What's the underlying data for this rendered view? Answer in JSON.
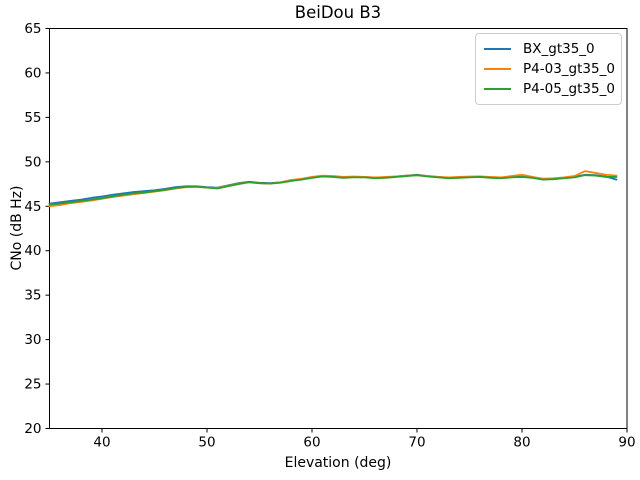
{
  "figure": {
    "background": "#ffffff",
    "spine_color": "#000000",
    "legend_border_color": "#cccccc"
  },
  "chart_data": {
    "type": "line",
    "title": "BeiDou B3",
    "xlabel": "Elevation (deg)",
    "ylabel": "CNo (dB Hz)",
    "xlim": [
      35,
      90
    ],
    "ylim": [
      20,
      65
    ],
    "xticks": [
      40,
      50,
      60,
      70,
      80,
      90
    ],
    "yticks": [
      20,
      25,
      30,
      35,
      40,
      45,
      50,
      55,
      60,
      65
    ],
    "grid": false,
    "legend_position": "upper right",
    "x": [
      35,
      36,
      37,
      38,
      39,
      40,
      41,
      42,
      43,
      44,
      45,
      46,
      47,
      48,
      49,
      50,
      51,
      52,
      53,
      54,
      55,
      56,
      57,
      58,
      59,
      60,
      61,
      62,
      63,
      64,
      65,
      66,
      67,
      68,
      69,
      70,
      71,
      72,
      73,
      74,
      75,
      76,
      77,
      78,
      79,
      80,
      81,
      82,
      83,
      84,
      85,
      86,
      87,
      88,
      89
    ],
    "series": [
      {
        "name": "BX_gt35_0",
        "color": "#1f77b4",
        "values": [
          45.3,
          45.45,
          45.6,
          45.75,
          45.95,
          46.1,
          46.3,
          46.45,
          46.6,
          46.7,
          46.8,
          46.95,
          47.15,
          47.25,
          47.25,
          47.15,
          47.1,
          47.35,
          47.6,
          47.75,
          47.65,
          47.6,
          47.7,
          47.9,
          48.05,
          48.25,
          48.4,
          48.35,
          48.25,
          48.3,
          48.3,
          48.2,
          48.25,
          48.35,
          48.45,
          48.55,
          48.4,
          48.3,
          48.2,
          48.25,
          48.3,
          48.35,
          48.25,
          48.2,
          48.3,
          48.35,
          48.25,
          48.1,
          48.1,
          48.2,
          48.3,
          48.55,
          48.5,
          48.35,
          48.0
        ]
      },
      {
        "name": "P4-03_gt35_0",
        "color": "#ff7f0e",
        "values": [
          45.0,
          45.15,
          45.35,
          45.5,
          45.65,
          45.85,
          46.05,
          46.2,
          46.35,
          46.5,
          46.65,
          46.8,
          47.0,
          47.15,
          47.2,
          47.1,
          47.05,
          47.3,
          47.55,
          47.7,
          47.6,
          47.55,
          47.7,
          47.95,
          48.1,
          48.3,
          48.45,
          48.4,
          48.3,
          48.35,
          48.3,
          48.25,
          48.3,
          48.35,
          48.45,
          48.5,
          48.4,
          48.3,
          48.25,
          48.3,
          48.35,
          48.35,
          48.3,
          48.25,
          48.4,
          48.55,
          48.3,
          48.1,
          48.15,
          48.25,
          48.4,
          48.95,
          48.75,
          48.55,
          48.45
        ]
      },
      {
        "name": "P4-05_gt35_0",
        "color": "#2ca02c",
        "values": [
          45.2,
          45.3,
          45.45,
          45.6,
          45.75,
          45.9,
          46.1,
          46.3,
          46.45,
          46.55,
          46.7,
          46.85,
          47.05,
          47.2,
          47.2,
          47.1,
          47.0,
          47.25,
          47.5,
          47.7,
          47.6,
          47.55,
          47.65,
          47.85,
          48.0,
          48.2,
          48.35,
          48.3,
          48.2,
          48.25,
          48.25,
          48.15,
          48.2,
          48.3,
          48.4,
          48.5,
          48.35,
          48.25,
          48.15,
          48.2,
          48.25,
          48.3,
          48.2,
          48.15,
          48.25,
          48.3,
          48.2,
          48.0,
          48.05,
          48.15,
          48.25,
          48.5,
          48.45,
          48.3,
          48.3
        ]
      }
    ]
  }
}
